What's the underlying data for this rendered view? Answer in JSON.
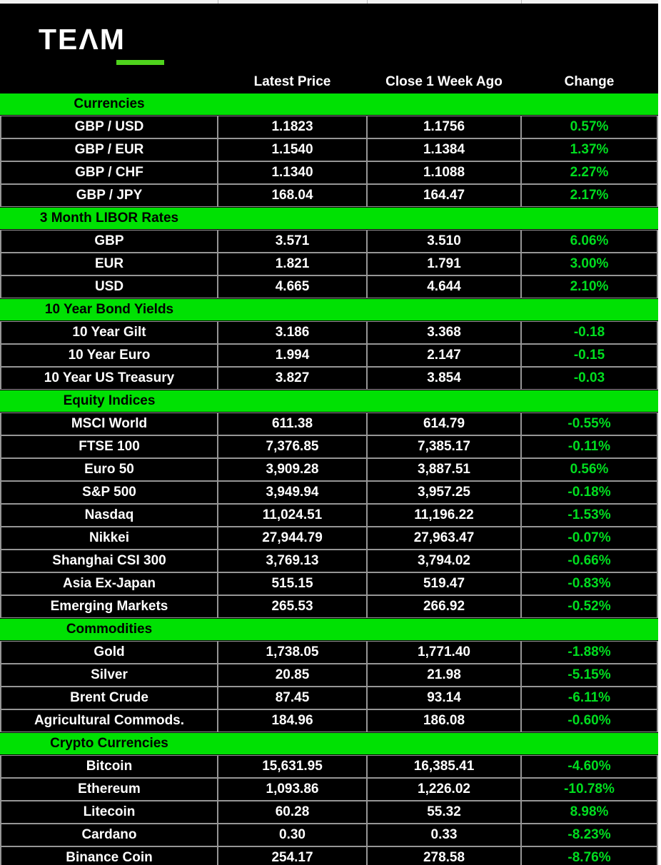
{
  "brand": {
    "text": "TEAM",
    "display_left": "TE",
    "display_right": "ΛM"
  },
  "header": {
    "columns": [
      "Latest Price",
      "Close 1 Week Ago",
      "Change"
    ]
  },
  "colors": {
    "band_green": "#00e103",
    "change_green": "#00dd1f",
    "logo_underline_green": "#4fd31d",
    "cell_border_gray": "#969696",
    "background": "#000000",
    "text_white": "#ffffff"
  },
  "sections": [
    {
      "title": "Currencies",
      "rows": [
        {
          "label": "GBP / USD",
          "latest": "1.1823",
          "close": "1.1756",
          "change": "0.57%"
        },
        {
          "label": "GBP / EUR",
          "latest": "1.1540",
          "close": "1.1384",
          "change": "1.37%"
        },
        {
          "label": "GBP / CHF",
          "latest": "1.1340",
          "close": "1.1088",
          "change": "2.27%"
        },
        {
          "label": "GBP / JPY",
          "latest": "168.04",
          "close": "164.47",
          "change": "2.17%"
        }
      ]
    },
    {
      "title": "3 Month LIBOR Rates",
      "rows": [
        {
          "label": "GBP",
          "latest": "3.571",
          "close": "3.510",
          "change": "6.06%"
        },
        {
          "label": "EUR",
          "latest": "1.821",
          "close": "1.791",
          "change": "3.00%"
        },
        {
          "label": "USD",
          "latest": "4.665",
          "close": "4.644",
          "change": "2.10%"
        }
      ]
    },
    {
      "title": "10 Year Bond Yields",
      "rows": [
        {
          "label": "10 Year Gilt",
          "latest": "3.186",
          "close": "3.368",
          "change": "-0.18"
        },
        {
          "label": "10 Year Euro",
          "latest": "1.994",
          "close": "2.147",
          "change": "-0.15"
        },
        {
          "label": "10 Year US Treasury",
          "latest": "3.827",
          "close": "3.854",
          "change": "-0.03"
        }
      ]
    },
    {
      "title": "Equity Indices",
      "rows": [
        {
          "label": "MSCI World",
          "latest": "611.38",
          "close": "614.79",
          "change": "-0.55%"
        },
        {
          "label": "FTSE 100",
          "latest": "7,376.85",
          "close": "7,385.17",
          "change": "-0.11%"
        },
        {
          "label": "Euro 50",
          "latest": "3,909.28",
          "close": "3,887.51",
          "change": "0.56%"
        },
        {
          "label": "S&P 500",
          "latest": "3,949.94",
          "close": "3,957.25",
          "change": "-0.18%"
        },
        {
          "label": "Nasdaq",
          "latest": "11,024.51",
          "close": "11,196.22",
          "change": "-1.53%"
        },
        {
          "label": "Nikkei",
          "latest": "27,944.79",
          "close": "27,963.47",
          "change": "-0.07%"
        },
        {
          "label": "Shanghai CSI 300",
          "latest": "3,769.13",
          "close": "3,794.02",
          "change": "-0.66%"
        },
        {
          "label": "Asia Ex-Japan",
          "latest": "515.15",
          "close": "519.47",
          "change": "-0.83%"
        },
        {
          "label": "Emerging Markets",
          "latest": "265.53",
          "close": "266.92",
          "change": "-0.52%"
        }
      ]
    },
    {
      "title": "Commodities",
      "rows": [
        {
          "label": "Gold",
          "latest": "1,738.05",
          "close": "1,771.40",
          "change": "-1.88%"
        },
        {
          "label": "Silver",
          "latest": "20.85",
          "close": "21.98",
          "change": "-5.15%"
        },
        {
          "label": "Brent Crude",
          "latest": "87.45",
          "close": "93.14",
          "change": "-6.11%"
        },
        {
          "label": "Agricultural Commods.",
          "latest": "184.96",
          "close": "186.08",
          "change": "-0.60%"
        }
      ]
    },
    {
      "title": "Crypto Currencies",
      "rows": [
        {
          "label": "Bitcoin",
          "latest": "15,631.95",
          "close": "16,385.41",
          "change": "-4.60%"
        },
        {
          "label": "Ethereum",
          "latest": "1,093.86",
          "close": "1,226.02",
          "change": "-10.78%"
        },
        {
          "label": "Litecoin",
          "latest": "60.28",
          "close": "55.32",
          "change": "8.98%"
        },
        {
          "label": "Cardano",
          "latest": "0.30",
          "close": "0.33",
          "change": "-8.23%"
        },
        {
          "label": "Binance Coin",
          "latest": "254.17",
          "close": "278.58",
          "change": "-8.76%"
        }
      ]
    }
  ]
}
